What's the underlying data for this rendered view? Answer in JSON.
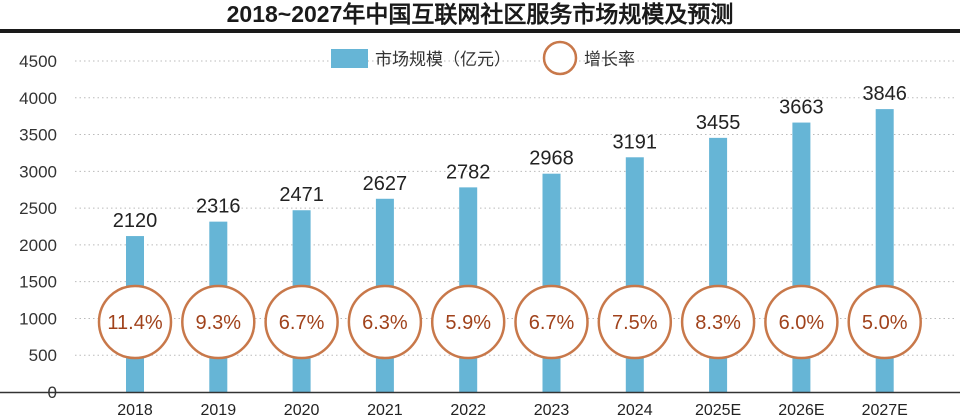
{
  "chart_data": {
    "type": "bar",
    "title": "2018~2027年中国互联网社区服务市场规模及预测",
    "categories": [
      "2018",
      "2019",
      "2020",
      "2021",
      "2022",
      "2023",
      "2024",
      "2025E",
      "2026E",
      "2027E"
    ],
    "series": [
      {
        "name": "市场规模（亿元）",
        "type": "bar",
        "values": [
          2120,
          2316,
          2471,
          2627,
          2782,
          2968,
          3191,
          3455,
          3663,
          3846
        ],
        "color": "#66b5d6"
      },
      {
        "name": "增长率",
        "type": "circle-label",
        "values": [
          "11.4%",
          "9.3%",
          "6.7%",
          "6.3%",
          "5.9%",
          "6.7%",
          "7.5%",
          "8.3%",
          "6.0%",
          "5.0%"
        ],
        "color": "#c8784a"
      }
    ],
    "yticks": [
      0,
      500,
      1000,
      1500,
      2000,
      2500,
      3000,
      3500,
      4000,
      4500
    ],
    "ylim": [
      0,
      4500
    ],
    "grid": true,
    "legend_position": "top-center",
    "xlabel": "",
    "ylabel": ""
  }
}
